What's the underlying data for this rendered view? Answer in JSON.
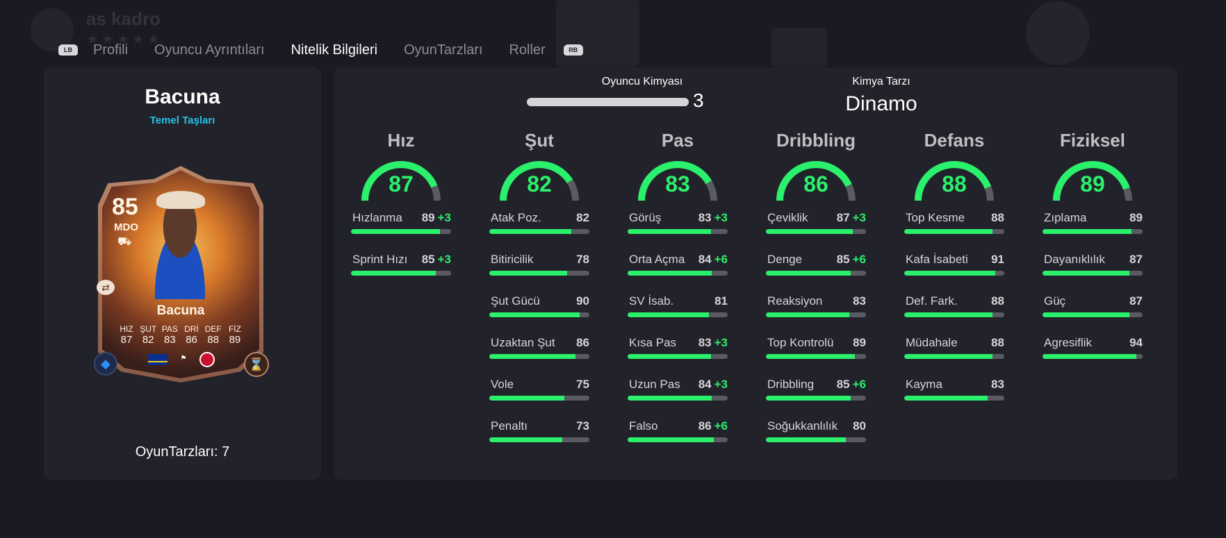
{
  "background": {
    "squad_name": "as kadro",
    "rating_stars": "★★★★★"
  },
  "tabs": {
    "left_bumper": "LB",
    "right_bumper": "RB",
    "items": [
      {
        "label": "Profili",
        "active": false
      },
      {
        "label": "Oyuncu Ayrıntıları",
        "active": false
      },
      {
        "label": "Nitelik Bilgileri",
        "active": true
      },
      {
        "label": "OyunTarzları",
        "active": false
      },
      {
        "label": "Roller",
        "active": false
      }
    ]
  },
  "player": {
    "name": "Bacuna",
    "subtitle": "Temel Taşları",
    "playstyles_label": "OyunTarzları: 7",
    "card": {
      "overall": "85",
      "position": "MDO",
      "name": "Bacuna",
      "stats": [
        {
          "label": "HIZ",
          "value": "87"
        },
        {
          "label": "ŞUT",
          "value": "82"
        },
        {
          "label": "PAS",
          "value": "83"
        },
        {
          "label": "DRİ",
          "value": "86"
        },
        {
          "label": "DEF",
          "value": "88"
        },
        {
          "label": "FİZ",
          "value": "89"
        }
      ],
      "icons": [
        "chemistry-icon",
        "nation-flag-curacao",
        "league-badge",
        "club-badge",
        "evolution-icon",
        "dna-icon"
      ]
    }
  },
  "chemistry": {
    "label": "Oyuncu Kimyası",
    "value": "3",
    "max": 3,
    "style_label": "Kimya Tarzı",
    "style_value": "Dinamo"
  },
  "colors": {
    "accent_green": "#2af06c",
    "accent_cyan": "#23c4ea",
    "panel": "#22222a"
  },
  "categories": [
    {
      "title": "Hız",
      "value": 87,
      "attributes": [
        {
          "name": "Hızlanma",
          "value": "89",
          "boost": "+3"
        },
        {
          "name": "Sprint Hızı",
          "value": "85",
          "boost": "+3"
        }
      ]
    },
    {
      "title": "Şut",
      "value": 82,
      "attributes": [
        {
          "name": "Atak Poz.",
          "value": "82",
          "boost": ""
        },
        {
          "name": "Bitiricilik",
          "value": "78",
          "boost": ""
        },
        {
          "name": "Şut Gücü",
          "value": "90",
          "boost": ""
        },
        {
          "name": "Uzaktan Şut",
          "value": "86",
          "boost": ""
        },
        {
          "name": "Vole",
          "value": "75",
          "boost": ""
        },
        {
          "name": "Penaltı",
          "value": "73",
          "boost": ""
        }
      ]
    },
    {
      "title": "Pas",
      "value": 83,
      "attributes": [
        {
          "name": "Görüş",
          "value": "83",
          "boost": "+3"
        },
        {
          "name": "Orta Açma",
          "value": "84",
          "boost": "+6"
        },
        {
          "name": "SV İsab.",
          "value": "81",
          "boost": ""
        },
        {
          "name": "Kısa Pas",
          "value": "83",
          "boost": "+3"
        },
        {
          "name": "Uzun Pas",
          "value": "84",
          "boost": "+3"
        },
        {
          "name": "Falso",
          "value": "86",
          "boost": "+6"
        }
      ]
    },
    {
      "title": "Dribbling",
      "value": 86,
      "attributes": [
        {
          "name": "Çeviklik",
          "value": "87",
          "boost": "+3"
        },
        {
          "name": "Denge",
          "value": "85",
          "boost": "+6"
        },
        {
          "name": "Reaksiyon",
          "value": "83",
          "boost": ""
        },
        {
          "name": "Top Kontrolü",
          "value": "89",
          "boost": ""
        },
        {
          "name": "Dribbling",
          "value": "85",
          "boost": "+6"
        },
        {
          "name": "Soğukkanlılık",
          "value": "80",
          "boost": ""
        }
      ]
    },
    {
      "title": "Defans",
      "value": 88,
      "attributes": [
        {
          "name": "Top Kesme",
          "value": "88",
          "boost": ""
        },
        {
          "name": "Kafa İsabeti",
          "value": "91",
          "boost": ""
        },
        {
          "name": "Def. Fark.",
          "value": "88",
          "boost": ""
        },
        {
          "name": "Müdahale",
          "value": "88",
          "boost": ""
        },
        {
          "name": "Kayma",
          "value": "83",
          "boost": ""
        }
      ]
    },
    {
      "title": "Fiziksel",
      "value": 89,
      "attributes": [
        {
          "name": "Zıplama",
          "value": "89",
          "boost": ""
        },
        {
          "name": "Dayanıklılık",
          "value": "87",
          "boost": ""
        },
        {
          "name": "Güç",
          "value": "87",
          "boost": ""
        },
        {
          "name": "Agresiflik",
          "value": "94",
          "boost": ""
        }
      ]
    }
  ]
}
